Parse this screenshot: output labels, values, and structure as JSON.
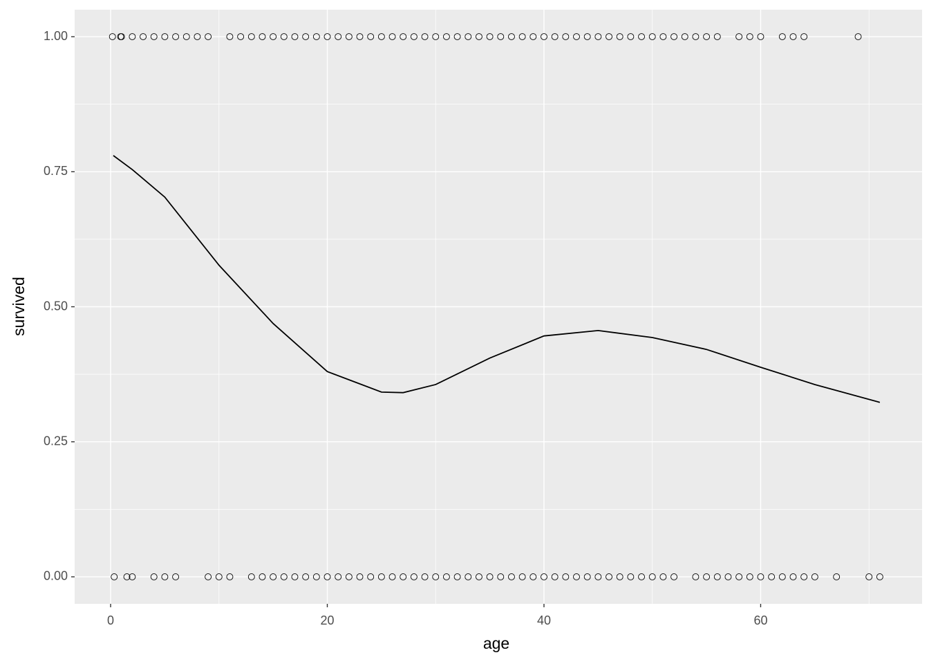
{
  "chart_data": {
    "type": "scatter",
    "x_label": "age",
    "y_label": "survived",
    "xlim": [
      -3.32,
      74.9
    ],
    "ylim": [
      -0.05,
      1.05
    ],
    "xticks": [
      0,
      20,
      40,
      60
    ],
    "yticks": [
      {
        "value": 0,
        "label": "0.00"
      },
      {
        "value": 0.25,
        "label": "0.25"
      },
      {
        "value": 0.5,
        "label": "0.50"
      },
      {
        "value": 0.75,
        "label": "0.75"
      },
      {
        "value": 1,
        "label": "1.00"
      }
    ],
    "grid": true,
    "minor_grid": true,
    "panel_color": "#ebebeb",
    "series": [
      {
        "type": "scatter",
        "color": "#000000",
        "x": [
          0.17,
          0.92,
          1,
          2,
          3,
          4,
          5,
          6,
          7,
          8,
          9,
          11,
          12,
          13,
          14,
          15,
          16,
          17,
          18,
          19,
          20,
          21,
          22,
          23,
          24,
          25,
          26,
          27,
          28,
          29,
          30,
          31,
          32,
          33,
          34,
          35,
          36,
          37,
          38,
          39,
          40,
          41,
          42,
          43,
          44,
          45,
          46,
          47,
          48,
          49,
          50,
          51,
          52,
          53,
          54,
          55,
          56,
          58,
          59,
          60,
          62,
          63,
          64,
          69
        ],
        "values": [
          1,
          1,
          1,
          1,
          1,
          1,
          1,
          1,
          1,
          1,
          1,
          1,
          1,
          1,
          1,
          1,
          1,
          1,
          1,
          1,
          1,
          1,
          1,
          1,
          1,
          1,
          1,
          1,
          1,
          1,
          1,
          1,
          1,
          1,
          1,
          1,
          1,
          1,
          1,
          1,
          1,
          1,
          1,
          1,
          1,
          1,
          1,
          1,
          1,
          1,
          1,
          1,
          1,
          1,
          1,
          1,
          1,
          1,
          1,
          1,
          1,
          1,
          1,
          1
        ]
      },
      {
        "type": "scatter",
        "color": "#000000",
        "x": [
          0.33,
          1.5,
          2,
          4,
          5,
          6,
          9,
          10,
          11,
          13,
          14,
          15,
          16,
          17,
          18,
          19,
          20,
          21,
          22,
          23,
          24,
          25,
          26,
          27,
          28,
          29,
          30,
          31,
          32,
          33,
          34,
          35,
          36,
          37,
          38,
          39,
          40,
          41,
          42,
          43,
          44,
          45,
          46,
          47,
          48,
          49,
          50,
          51,
          52,
          54,
          55,
          56,
          57,
          58,
          59,
          60,
          61,
          62,
          63,
          64,
          65,
          67,
          70,
          71
        ],
        "values": [
          0,
          0,
          0,
          0,
          0,
          0,
          0,
          0,
          0,
          0,
          0,
          0,
          0,
          0,
          0,
          0,
          0,
          0,
          0,
          0,
          0,
          0,
          0,
          0,
          0,
          0,
          0,
          0,
          0,
          0,
          0,
          0,
          0,
          0,
          0,
          0,
          0,
          0,
          0,
          0,
          0,
          0,
          0,
          0,
          0,
          0,
          0,
          0,
          0,
          0,
          0,
          0,
          0,
          0,
          0,
          0,
          0,
          0,
          0,
          0,
          0,
          0,
          0,
          0
        ]
      },
      {
        "type": "line",
        "color": "#000000",
        "x": [
          0.25,
          2,
          5,
          10,
          15,
          20,
          25,
          27,
          30,
          35,
          40,
          45,
          50,
          55,
          60,
          65,
          71
        ],
        "values": [
          0.78,
          0.754,
          0.703,
          0.577,
          0.469,
          0.38,
          0.342,
          0.341,
          0.356,
          0.405,
          0.446,
          0.456,
          0.443,
          0.421,
          0.388,
          0.356,
          0.323
        ]
      }
    ]
  }
}
